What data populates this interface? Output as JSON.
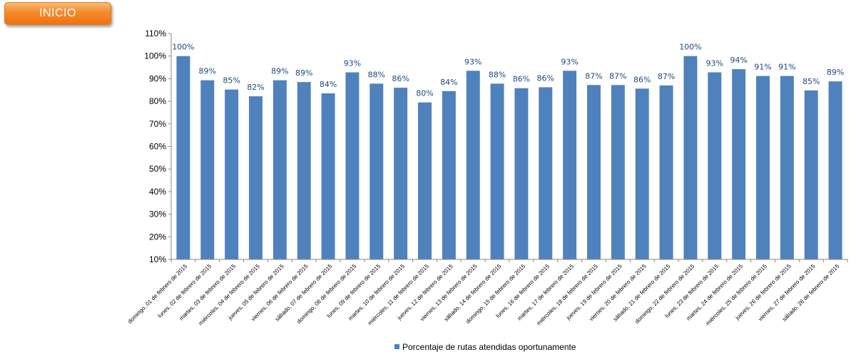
{
  "header": {
    "inicio_label": "INICIO"
  },
  "colors": {
    "bar": "#4f81bd",
    "data_label": "#1f497d",
    "button": "#f58a2a"
  },
  "chart_data": {
    "type": "bar",
    "title": "",
    "xlabel": "",
    "ylabel": "",
    "ylim": [
      0.1,
      1.1
    ],
    "yticks": [
      "10%",
      "20%",
      "30%",
      "40%",
      "50%",
      "60%",
      "70%",
      "80%",
      "90%",
      "100%",
      "110%"
    ],
    "grid": false,
    "legend_position": "bottom",
    "categories": [
      "domingo, 01 de febrero de 2015",
      "lunes, 02 de febrero de 2015",
      "martes, 03 de febrero de 2015",
      "miércoles, 04 de febrero de 2015",
      "jueves, 05 de febrero de 2015",
      "viernes, 06 de febrero de 2015",
      "sábado, 07 de febrero de 2015",
      "domingo, 08 de febrero de 2015",
      "lunes, 09 de febrero de 2015",
      "martes, 10 de febrero de 2015",
      "miércoles, 11 de febrero de 2015",
      "jueves, 12 de febrero de 2015",
      "viernes, 13 de febrero de 2015",
      "sábado, 14 de febrero de 2015",
      "domingo, 15 de febrero de 2015",
      "lunes, 16 de febrero de 2015",
      "martes, 17 de febrero de 2015",
      "miércoles, 18 de febrero de 2015",
      "jueves, 19 de febrero de 2015",
      "viernes, 20 de febrero de 2015",
      "sábado, 21 de febrero de 2015",
      "domingo, 22 de febrero de 2015",
      "lunes, 23 de febrero de 2015",
      "martes, 24 de febrero de 2015",
      "miércoles, 25 de febrero de 2015",
      "jueves, 26 de febrero de 2015",
      "viernes, 27 de febrero de 2015",
      "sábado, 28 de febrero de 2015"
    ],
    "series": [
      {
        "name": "Porcentaje de rutas atendidas oportunamente",
        "values": [
          1.0,
          0.893,
          0.852,
          0.822,
          0.893,
          0.885,
          0.835,
          0.928,
          0.878,
          0.86,
          0.795,
          0.845,
          0.935,
          0.878,
          0.858,
          0.862,
          0.935,
          0.872,
          0.872,
          0.856,
          0.87,
          1.0,
          0.928,
          0.942,
          0.912,
          0.912,
          0.848,
          0.888
        ],
        "labels": [
          "100%",
          "89%",
          "85%",
          "82%",
          "89%",
          "89%",
          "84%",
          "93%",
          "88%",
          "86%",
          "80%",
          "84%",
          "93%",
          "88%",
          "86%",
          "86%",
          "93%",
          "87%",
          "87%",
          "86%",
          "87%",
          "100%",
          "93%",
          "94%",
          "91%",
          "91%",
          "85%",
          "89%"
        ]
      }
    ]
  }
}
